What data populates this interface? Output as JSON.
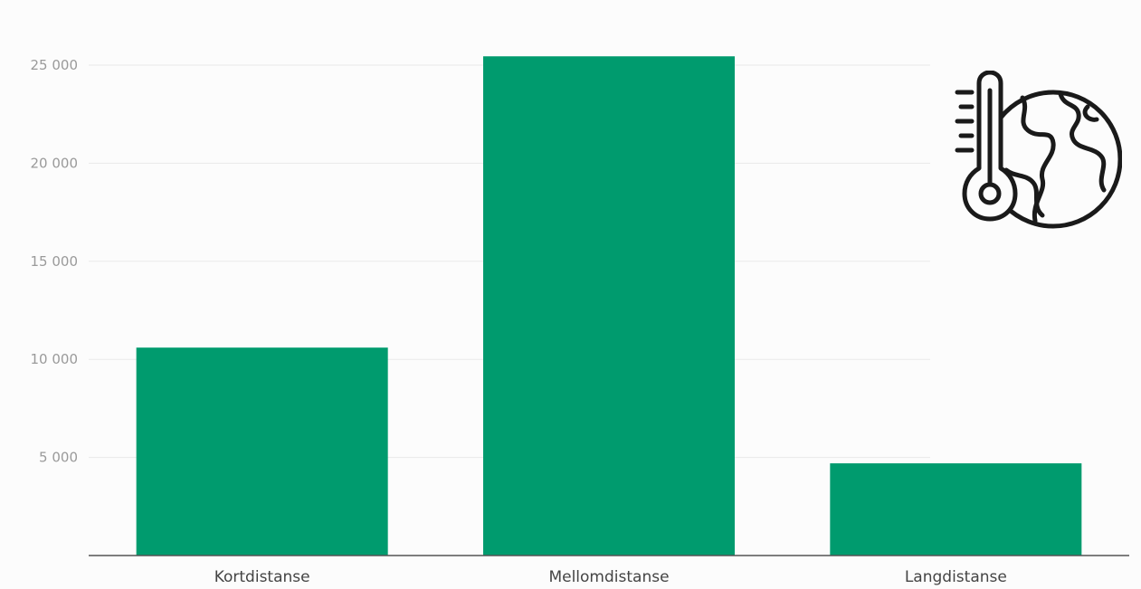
{
  "chart_data": {
    "type": "bar",
    "categories": [
      "Kortdistanse",
      "Mellomdistanse",
      "Langdistanse"
    ],
    "values": [
      10600,
      25450,
      4700
    ],
    "title": "",
    "xlabel": "",
    "ylabel": "",
    "ylim": [
      0,
      25000
    ],
    "yticks": [
      5000,
      10000,
      15000,
      20000,
      25000
    ],
    "ytick_labels": [
      "5 000",
      "10 000",
      "15 000",
      "20 000",
      "25 000"
    ],
    "grid": true,
    "bar_color": "#009b6e"
  },
  "icon": {
    "name": "thermometer-globe-icon"
  }
}
